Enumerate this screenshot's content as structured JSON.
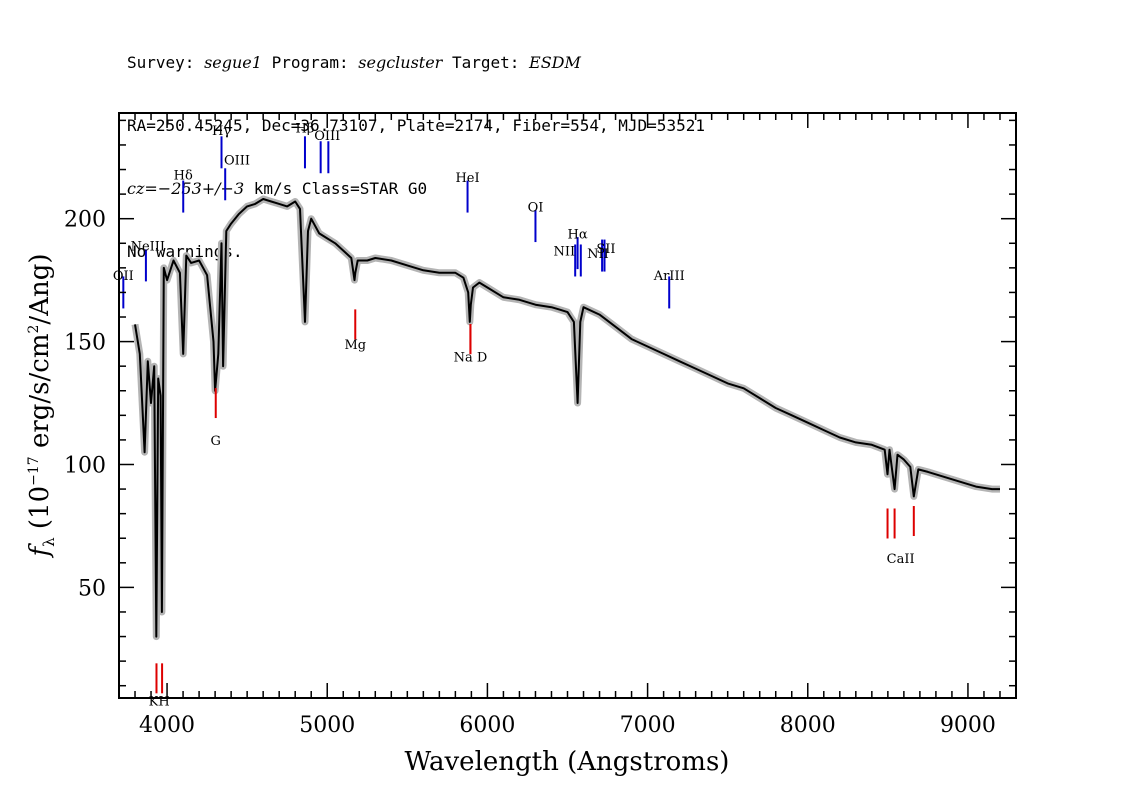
{
  "header": {
    "l1_survey_k": "Survey: ",
    "l1_survey_v": "segue1",
    "l1_prog_k": " Program: ",
    "l1_prog_v": "segcluster",
    "l1_target_k": " Target: ",
    "l1_target_v": "ESDM",
    "l2": "RA=250.45245, Dec=36.73107, Plate=2174, Fiber=554, MJD=53521",
    "l3_cz": "cz=−253+/−3",
    "l3_rest": " km/s Class=STAR G0",
    "l4": "No warnings."
  },
  "chart_data": {
    "type": "line",
    "xlabel": "Wavelength (Angstroms)",
    "ylabel": "f_λ (10^-17 erg/s/cm^2/Ang)",
    "xlim": [
      3700,
      9300
    ],
    "ylim": [
      5,
      243
    ],
    "x_ticks": [
      4000,
      5000,
      6000,
      7000,
      8000,
      9000
    ],
    "y_ticks": [
      50,
      100,
      150,
      200
    ],
    "colors": {
      "spectrum": "#000000",
      "error_band": "#b4b4b4",
      "emission": "#0000cc",
      "absorption": "#dd0000"
    },
    "series": [
      {
        "x": [
          3800,
          3830,
          3860,
          3880,
          3900,
          3920,
          3933,
          3945,
          3960,
          3968,
          3980,
          4000,
          4040,
          4080,
          4101,
          4120,
          4150,
          4200,
          4250,
          4290,
          4300,
          4320,
          4340,
          4350,
          4370,
          4400,
          4450,
          4500,
          4550,
          4600,
          4650,
          4700,
          4750,
          4800,
          4830,
          4861,
          4880,
          4900,
          4950,
          5000,
          5050,
          5100,
          5150,
          5170,
          5175,
          5190,
          5250,
          5300,
          5400,
          5500,
          5600,
          5700,
          5800,
          5850,
          5880,
          5890,
          5896,
          5910,
          5950,
          6000,
          6100,
          6200,
          6300,
          6400,
          6450,
          6500,
          6540,
          6563,
          6580,
          6600,
          6700,
          6800,
          6900,
          7000,
          7100,
          7200,
          7300,
          7400,
          7500,
          7600,
          7700,
          7800,
          7900,
          8000,
          8100,
          8200,
          8300,
          8400,
          8480,
          8498,
          8510,
          8542,
          8560,
          8600,
          8640,
          8662,
          8690,
          8750,
          8850,
          8950,
          9050,
          9150,
          9200
        ],
        "y": [
          157,
          145,
          105,
          142,
          125,
          140,
          30,
          135,
          128,
          40,
          180,
          175,
          183,
          178,
          145,
          185,
          182,
          183,
          177,
          150,
          130,
          145,
          190,
          140,
          195,
          198,
          202,
          205,
          206,
          208,
          207,
          206,
          205,
          207,
          204,
          158,
          195,
          200,
          194,
          192,
          190,
          187,
          184,
          175,
          178,
          183,
          183,
          184,
          183,
          181,
          179,
          178,
          178,
          176,
          170,
          158,
          165,
          172,
          174,
          172,
          168,
          167,
          165,
          164,
          163,
          162,
          158,
          125,
          158,
          164,
          161,
          156,
          151,
          148,
          145,
          142,
          139,
          136,
          133,
          131,
          127,
          123,
          120,
          117,
          114,
          111,
          109,
          108,
          106,
          96,
          106,
          90,
          104,
          102,
          99,
          87,
          98,
          97,
          95,
          93,
          91,
          90,
          90
        ]
      }
    ],
    "emission_lines": [
      {
        "label": "OII",
        "x": 3727,
        "y": 170
      },
      {
        "label": "NeIII",
        "x": 3868,
        "y": 181
      },
      {
        "label": "Hδ",
        "x": 4101,
        "y": 209
      },
      {
        "label": "Hγ",
        "x": 4340,
        "y": 227
      },
      {
        "label": "OIII",
        "x": 4363,
        "y": 214
      },
      {
        "label": "Hβ",
        "x": 4861,
        "y": 227
      },
      {
        "label": "OIII",
        "x": 4959,
        "y": 225
      },
      {
        "label": "OIII",
        "x": 5007,
        "y": 225
      },
      {
        "label": "HeI",
        "x": 5876,
        "y": 209
      },
      {
        "label": "OI",
        "x": 6300,
        "y": 197
      },
      {
        "label": "NII",
        "x": 6548,
        "y": 183
      },
      {
        "label": "Hα",
        "x": 6563,
        "y": 186
      },
      {
        "label": "NII",
        "x": 6583,
        "y": 183
      },
      {
        "label": "SII",
        "x": 6716,
        "y": 185
      },
      {
        "label": "SII",
        "x": 6731,
        "y": 185
      },
      {
        "label": "ArIII",
        "x": 7135,
        "y": 170
      }
    ],
    "absorption_lines": [
      {
        "label": "K",
        "x": 3934,
        "y": 13
      },
      {
        "label": "H",
        "x": 3969,
        "y": 13
      },
      {
        "label": "G",
        "x": 4304,
        "y": 125
      },
      {
        "label": "Mg",
        "x": 5175,
        "y": 157
      },
      {
        "label": "Na",
        "x": 5894,
        "y": 151
      },
      {
        "label": "D",
        "x": 5894,
        "y": 151
      },
      {
        "label": "CaII",
        "x": 8498,
        "y": 76
      },
      {
        "label": "CaII",
        "x": 8542,
        "y": 76
      },
      {
        "label": "CaII",
        "x": 8662,
        "y": 77
      }
    ],
    "label_positions": {
      "OII": [
        3727,
        175
      ],
      "NeIII": [
        3880,
        187
      ],
      "Hδ": [
        4101,
        216
      ],
      "Hγ": [
        4340,
        234
      ],
      "OIII": [
        4437,
        222
      ],
      "Hβ": [
        4861,
        235
      ],
      "OIII2": [
        5000,
        232
      ],
      "HeI": [
        5876,
        215
      ],
      "OI": [
        6300,
        203
      ],
      "NII": [
        6480,
        185
      ],
      "Hα": [
        6563,
        192
      ],
      "NII2": [
        6690,
        184
      ],
      "SII": [
        6740,
        186
      ],
      "ArIII": [
        7135,
        175
      ],
      "KH": [
        3951,
        2
      ],
      "G": [
        4304,
        108
      ],
      "Mg": [
        5175,
        147
      ],
      "NaD": [
        5894,
        142
      ],
      "CaII": [
        8580,
        60
      ]
    }
  }
}
